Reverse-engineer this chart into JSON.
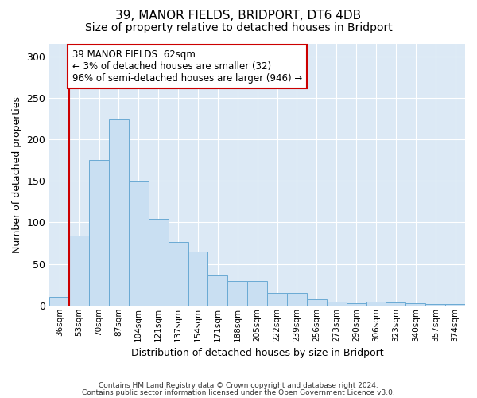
{
  "title1": "39, MANOR FIELDS, BRIDPORT, DT6 4DB",
  "title2": "Size of property relative to detached houses in Bridport",
  "xlabel": "Distribution of detached houses by size in Bridport",
  "ylabel": "Number of detached properties",
  "categories": [
    "36sqm",
    "53sqm",
    "70sqm",
    "87sqm",
    "104sqm",
    "121sqm",
    "137sqm",
    "154sqm",
    "171sqm",
    "188sqm",
    "205sqm",
    "222sqm",
    "239sqm",
    "256sqm",
    "273sqm",
    "290sqm",
    "306sqm",
    "323sqm",
    "340sqm",
    "357sqm",
    "374sqm"
  ],
  "values": [
    10,
    84,
    175,
    224,
    149,
    104,
    76,
    65,
    36,
    29,
    29,
    15,
    15,
    7,
    5,
    3,
    5,
    4,
    3,
    2,
    2
  ],
  "bar_color": "#c9dff2",
  "bar_edge_color": "#6aaad4",
  "vline_x": 0.5,
  "vline_color": "#cc0000",
  "annotation_text": "39 MANOR FIELDS: 62sqm\n← 3% of detached houses are smaller (32)\n96% of semi-detached houses are larger (946) →",
  "annotation_box_color": "#ffffff",
  "annotation_box_edge": "#cc0000",
  "ylim": [
    0,
    315
  ],
  "yticks": [
    0,
    50,
    100,
    150,
    200,
    250,
    300
  ],
  "footer1": "Contains HM Land Registry data © Crown copyright and database right 2024.",
  "footer2": "Contains public sector information licensed under the Open Government Licence v3.0.",
  "bg_color": "#dce9f5",
  "fig_bg": "#ffffff",
  "title1_fontsize": 11,
  "title2_fontsize": 10,
  "ann_fontsize": 8.5,
  "xlabel_fontsize": 9,
  "ylabel_fontsize": 9
}
